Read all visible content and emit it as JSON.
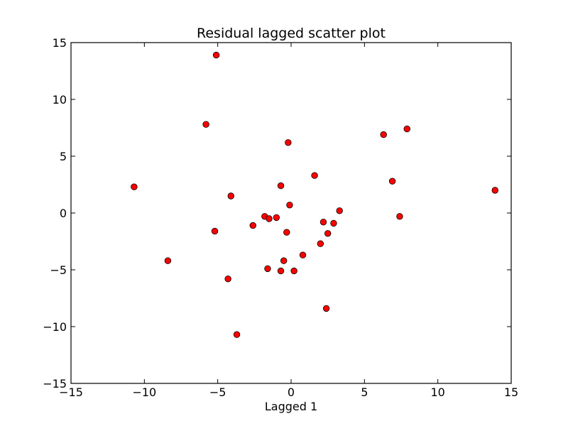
{
  "chart_data": {
    "type": "scatter",
    "title": "Residual lagged scatter plot",
    "xlabel": "Lagged 1",
    "ylabel": "",
    "xlim": [
      -15,
      15
    ],
    "ylim": [
      -15,
      15
    ],
    "xticks": [
      -15,
      -10,
      -5,
      0,
      5,
      10,
      15
    ],
    "yticks": [
      -15,
      -10,
      -5,
      0,
      5,
      10,
      15
    ],
    "xtick_labels": [
      "−15",
      "−10",
      "−5",
      "0",
      "5",
      "10",
      "15"
    ],
    "ytick_labels": [
      "−15",
      "−10",
      "−5",
      "0",
      "5",
      "10",
      "15"
    ],
    "grid": false,
    "marker_color": "#ff0000",
    "marker_edge_color": "#000000",
    "series": [
      {
        "points": [
          {
            "x": -5.1,
            "y": 13.9
          },
          {
            "x": -5.8,
            "y": 7.8
          },
          {
            "x": -10.7,
            "y": 2.3
          },
          {
            "x": -8.4,
            "y": -4.2
          },
          {
            "x": -4.1,
            "y": 1.5
          },
          {
            "x": -5.2,
            "y": -1.6
          },
          {
            "x": -4.3,
            "y": -5.8
          },
          {
            "x": -3.7,
            "y": -10.7
          },
          {
            "x": -2.6,
            "y": -1.1
          },
          {
            "x": -1.8,
            "y": -0.3
          },
          {
            "x": -1.5,
            "y": -0.5
          },
          {
            "x": -1.0,
            "y": -0.4
          },
          {
            "x": -0.7,
            "y": 2.4
          },
          {
            "x": -0.2,
            "y": 6.2
          },
          {
            "x": -0.1,
            "y": 0.7
          },
          {
            "x": -0.3,
            "y": -1.7
          },
          {
            "x": -0.5,
            "y": -4.2
          },
          {
            "x": -1.6,
            "y": -4.9
          },
          {
            "x": -0.7,
            "y": -5.1
          },
          {
            "x": 0.2,
            "y": -5.1
          },
          {
            "x": 0.8,
            "y": -3.7
          },
          {
            "x": 1.6,
            "y": 3.3
          },
          {
            "x": 2.0,
            "y": -2.7
          },
          {
            "x": 2.2,
            "y": -0.8
          },
          {
            "x": 2.5,
            "y": -1.8
          },
          {
            "x": 2.9,
            "y": -0.9
          },
          {
            "x": 3.3,
            "y": 0.2
          },
          {
            "x": 2.4,
            "y": -8.4
          },
          {
            "x": 6.3,
            "y": 6.9
          },
          {
            "x": 7.9,
            "y": 7.4
          },
          {
            "x": 6.9,
            "y": 2.8
          },
          {
            "x": 7.4,
            "y": -0.3
          },
          {
            "x": 13.9,
            "y": 2.0
          }
        ]
      }
    ]
  }
}
